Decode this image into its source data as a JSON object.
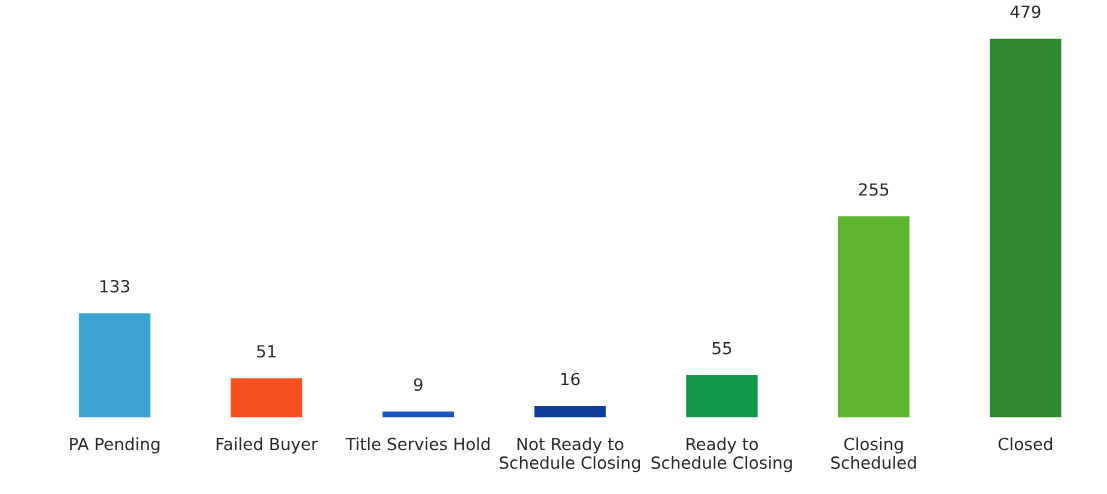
{
  "chart_data": {
    "type": "bar",
    "categories": [
      "PA Pending",
      "Failed Buyer",
      "Title Servies Hold",
      "Not Ready to\nSchedule Closing",
      "Ready to\nSchedule Closing",
      "Closing\nScheduled",
      "Closed"
    ],
    "values": [
      133,
      51,
      9,
      16,
      55,
      255,
      479
    ],
    "colors": [
      "#3ba3d0",
      "#f4511e",
      "#1a56c8",
      "#0d3f9a",
      "#12964a",
      "#5db52f",
      "#2f8a2f"
    ],
    "data_labels": true,
    "grid": false,
    "legend": false
  }
}
